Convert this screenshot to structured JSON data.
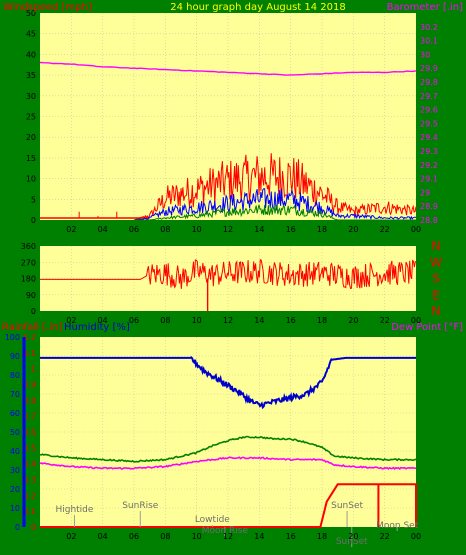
{
  "header": {
    "windspeed_label": "Windspeed [mph]",
    "title": "24 hour graph day   August 14 2018",
    "barometer_label": "Barometer [.in]"
  },
  "colors": {
    "background": "#008000",
    "plot_bg": "#FFFF99",
    "axis_red": "#FF0000",
    "axis_magenta": "#FF00FF",
    "axis_blue": "#0000FF",
    "title_yellow": "#FFFF00",
    "temperature": "#008000",
    "humidity": "#0000CC",
    "rain": "#FF0000"
  },
  "chart_data": [
    {
      "type": "line",
      "name": "wind_barometer",
      "x_ticks": [
        "02",
        "04",
        "06",
        "08",
        "10",
        "12",
        "14",
        "16",
        "18",
        "20",
        "22",
        "00"
      ],
      "y_left": {
        "label": "Windspeed [mph]",
        "range": [
          0,
          50
        ],
        "ticks": [
          "50",
          "45",
          "40",
          "35",
          "30",
          "25",
          "20",
          "15",
          "10",
          "5",
          "0"
        ]
      },
      "y_right": {
        "label": "Barometer [.in]",
        "range": [
          28.8,
          30.3
        ],
        "ticks": [
          "30.2",
          "30.1",
          "30",
          "29.9",
          "29.8",
          "29.7",
          "29.6",
          "29.5",
          "29.4",
          "29.3",
          "29.2",
          "29.1",
          "29",
          "28.9",
          "28.8"
        ]
      },
      "barometer": {
        "x": [
          0,
          2,
          4,
          6,
          8,
          10,
          12,
          14,
          16,
          18,
          20,
          22,
          24
        ],
        "y": [
          29.94,
          29.93,
          29.91,
          29.9,
          29.89,
          29.88,
          29.87,
          29.86,
          29.85,
          29.86,
          29.87,
          29.87,
          29.88
        ]
      },
      "wind_gust_envelope": {
        "x": [
          0,
          6,
          7,
          8,
          10,
          12,
          14,
          16,
          17,
          18,
          19,
          20,
          22,
          24
        ],
        "y": [
          0,
          0,
          1,
          5,
          7,
          9,
          10,
          10,
          8,
          6,
          3,
          2,
          3,
          2
        ]
      },
      "wind_speed_envelope": {
        "x": [
          0,
          6,
          7,
          8,
          10,
          12,
          14,
          16,
          17,
          18,
          19,
          20,
          22,
          24
        ],
        "y": [
          0,
          0,
          0.5,
          2,
          3,
          4,
          5,
          5,
          4,
          3,
          1,
          1,
          0.5,
          0.5
        ]
      },
      "wind_avg_envelope": {
        "x": [
          0,
          7,
          8,
          10,
          12,
          14,
          16,
          18,
          19,
          24
        ],
        "y": [
          0,
          0,
          0.5,
          1,
          2,
          2.5,
          2.5,
          1.5,
          0,
          0
        ]
      }
    },
    {
      "type": "line",
      "name": "wind_direction",
      "x_ticks": [
        "02",
        "04",
        "06",
        "08",
        "10",
        "12",
        "14",
        "16",
        "18",
        "20",
        "22",
        "00"
      ],
      "y_range": [
        0,
        360
      ],
      "y_ticks": [
        "360",
        "270",
        "180",
        "90",
        "0"
      ],
      "compass_labels": [
        "N",
        "W",
        "S",
        "E",
        "N"
      ],
      "direction": {
        "x": [
          0,
          6.8,
          7,
          8,
          9,
          10,
          11,
          12,
          14,
          16,
          18,
          20,
          22,
          24
        ],
        "y": [
          175,
          175,
          200,
          210,
          180,
          220,
          200,
          210,
          220,
          200,
          210,
          190,
          210,
          210
        ]
      }
    },
    {
      "type": "line",
      "name": "rain_humidity_temp",
      "labels": {
        "rainfall": "Rainfall [.in]",
        "humidity": "Humidity [%]",
        "temperature": "Temperature [°F]",
        "dew_point": "Dew Point [°F]"
      },
      "x_ticks": [
        "02",
        "04",
        "06",
        "08",
        "10",
        "12",
        "14",
        "16",
        "18",
        "20",
        "22",
        "00"
      ],
      "y_left_humidity": {
        "range": [
          0,
          100
        ],
        "ticks": [
          "100",
          "90",
          "80",
          "70",
          "60",
          "50",
          "40",
          "30",
          "20",
          "10",
          "0"
        ]
      },
      "y_left_rain": {
        "range": [
          0,
          1.2
        ],
        "ticks": [
          "1.2",
          "1.1",
          "1",
          "0.9",
          "0.8",
          "0.7",
          "0.6",
          "0.5",
          "0.4",
          "0.3",
          "0.2",
          "0.1",
          "0"
        ]
      },
      "y_right_temp": {
        "range": [
          30,
          140
        ],
        "ticks": [
          "140",
          "130",
          "120",
          "110",
          "100",
          "90",
          "80",
          "70",
          "60",
          "50",
          "40"
        ]
      },
      "humidity": {
        "x": [
          0,
          8,
          9.6,
          10.5,
          11.5,
          12.5,
          13.5,
          14,
          15,
          16,
          17,
          18,
          18.6,
          19.5,
          22,
          24
        ],
        "y": [
          89,
          89,
          89,
          82,
          77,
          72,
          66,
          64,
          66,
          68,
          70,
          76,
          88,
          89,
          89,
          89
        ]
      },
      "temperature": {
        "x": [
          0,
          2,
          4,
          6,
          8,
          9,
          10,
          11,
          12,
          13,
          14,
          15,
          16,
          17,
          18,
          18.8,
          20,
          22,
          24
        ],
        "y": [
          72,
          70,
          69,
          68,
          69,
          71,
          73,
          77,
          80,
          82,
          82,
          81,
          81,
          79,
          76,
          71,
          70,
          69,
          69
        ]
      },
      "dew_point": {
        "x": [
          0,
          2,
          4,
          6,
          8,
          10,
          12,
          14,
          16,
          17,
          18,
          18.8,
          20,
          22,
          24
        ],
        "y": [
          67,
          65,
          64,
          64,
          65,
          68,
          70,
          70,
          69,
          69,
          69,
          66,
          65,
          64,
          64
        ]
      },
      "rain": {
        "x": [
          0,
          17.9,
          18.3,
          19,
          21.5,
          21.6,
          24
        ],
        "y": [
          0,
          0,
          0.16,
          0.27,
          0.27,
          0.27,
          0.27
        ]
      },
      "annotations": [
        {
          "label": "Hightide",
          "x": 2.2
        },
        {
          "label": "SunRise",
          "x": 6.4
        },
        {
          "label": "Lowtide",
          "x": 11.0
        },
        {
          "label": "Moon Rise",
          "x": 11.8
        },
        {
          "label": "SunSet",
          "x": 19.6
        },
        {
          "label": "SunSet",
          "x": 19.9
        },
        {
          "label": "Moon Set",
          "x": 22.8
        }
      ]
    }
  ]
}
